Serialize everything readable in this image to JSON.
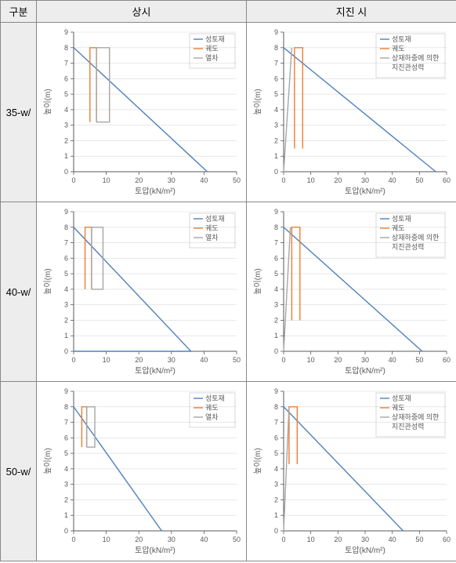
{
  "headers": {
    "category": "구분",
    "normal": "상시",
    "seismic": "지진 시"
  },
  "axis": {
    "x": "토압(kN/m²)",
    "y": "높이(m)"
  },
  "legend_entries": {
    "normal": [
      "성토재",
      "궤도",
      "열차"
    ],
    "seismic": [
      "성토재",
      "궤도",
      "상재하중에 의한\n지진관성력"
    ]
  },
  "colors": {
    "soil": "#4f81bd",
    "track": "#ed7d31",
    "train": "#a6a6a6",
    "inertia": "#a6a6a6",
    "axis": "#595959",
    "grid": "#d9d9d9",
    "bg": "#ffffff",
    "text": "#595959"
  },
  "plot": {
    "y": {
      "min": 0,
      "max": 9,
      "step": 1
    },
    "line_width": 1.4
  },
  "rows": [
    {
      "label": "35-w/",
      "normal": {
        "x": {
          "min": 0,
          "max": 50,
          "step": 10
        },
        "series": [
          {
            "key": "soil",
            "pts": [
              [
                0,
                8
              ],
              [
                41,
                0
              ]
            ]
          },
          {
            "key": "track",
            "pts": [
              [
                5,
                3.2
              ],
              [
                5,
                8
              ],
              [
                7,
                8
              ],
              [
                7,
                3.2
              ]
            ]
          },
          {
            "key": "train",
            "pts": [
              [
                7,
                3.2
              ],
              [
                7,
                8
              ],
              [
                11,
                8
              ],
              [
                11,
                3.2
              ],
              [
                7,
                3.2
              ]
            ]
          }
        ]
      },
      "seismic": {
        "x": {
          "min": 0,
          "max": 60,
          "step": 10
        },
        "series": [
          {
            "key": "soil",
            "pts": [
              [
                0,
                8
              ],
              [
                56,
                0
              ]
            ]
          },
          {
            "key": "track",
            "pts": [
              [
                4,
                1.5
              ],
              [
                4,
                8
              ],
              [
                7,
                8
              ],
              [
                7,
                1.5
              ]
            ]
          },
          {
            "key": "inertia",
            "pts": [
              [
                0,
                0
              ],
              [
                3,
                8
              ]
            ]
          }
        ]
      }
    },
    {
      "label": "40-w/",
      "normal": {
        "x": {
          "min": 0,
          "max": 50,
          "step": 10
        },
        "series": [
          {
            "key": "soil",
            "pts": [
              [
                0,
                8
              ],
              [
                36,
                0
              ],
              [
                0,
                0
              ]
            ]
          },
          {
            "key": "track",
            "pts": [
              [
                3.5,
                4
              ],
              [
                3.5,
                8
              ],
              [
                5.5,
                8
              ],
              [
                5.5,
                4
              ]
            ]
          },
          {
            "key": "train",
            "pts": [
              [
                5.5,
                4
              ],
              [
                5.5,
                8
              ],
              [
                9,
                8
              ],
              [
                9,
                4
              ],
              [
                5.5,
                4
              ]
            ]
          }
        ]
      },
      "seismic": {
        "x": {
          "min": 0,
          "max": 60,
          "step": 10
        },
        "series": [
          {
            "key": "soil",
            "pts": [
              [
                0,
                8
              ],
              [
                51,
                0
              ]
            ]
          },
          {
            "key": "track",
            "pts": [
              [
                3,
                2
              ],
              [
                3,
                8
              ],
              [
                6,
                8
              ],
              [
                6,
                2
              ]
            ]
          },
          {
            "key": "inertia",
            "pts": [
              [
                0,
                0
              ],
              [
                2.5,
                8
              ]
            ]
          }
        ]
      }
    },
    {
      "label": "50-w/",
      "normal": {
        "x": {
          "min": 0,
          "max": 50,
          "step": 10
        },
        "series": [
          {
            "key": "soil",
            "pts": [
              [
                0,
                8
              ],
              [
                27,
                0
              ]
            ]
          },
          {
            "key": "track",
            "pts": [
              [
                2.5,
                5.4
              ],
              [
                2.5,
                8
              ],
              [
                4,
                8
              ],
              [
                4,
                5.4
              ]
            ]
          },
          {
            "key": "train",
            "pts": [
              [
                4,
                5.4
              ],
              [
                4,
                8
              ],
              [
                6.5,
                8
              ],
              [
                6.5,
                5.4
              ],
              [
                4,
                5.4
              ]
            ]
          }
        ]
      },
      "seismic": {
        "x": {
          "min": 0,
          "max": 60,
          "step": 10
        },
        "series": [
          {
            "key": "soil",
            "pts": [
              [
                0,
                8
              ],
              [
                44,
                0
              ]
            ]
          },
          {
            "key": "track",
            "pts": [
              [
                2,
                4.3
              ],
              [
                2,
                8
              ],
              [
                5,
                8
              ],
              [
                5,
                4.3
              ]
            ]
          },
          {
            "key": "inertia",
            "pts": [
              [
                0,
                0
              ],
              [
                2,
                8
              ]
            ]
          }
        ]
      }
    }
  ]
}
